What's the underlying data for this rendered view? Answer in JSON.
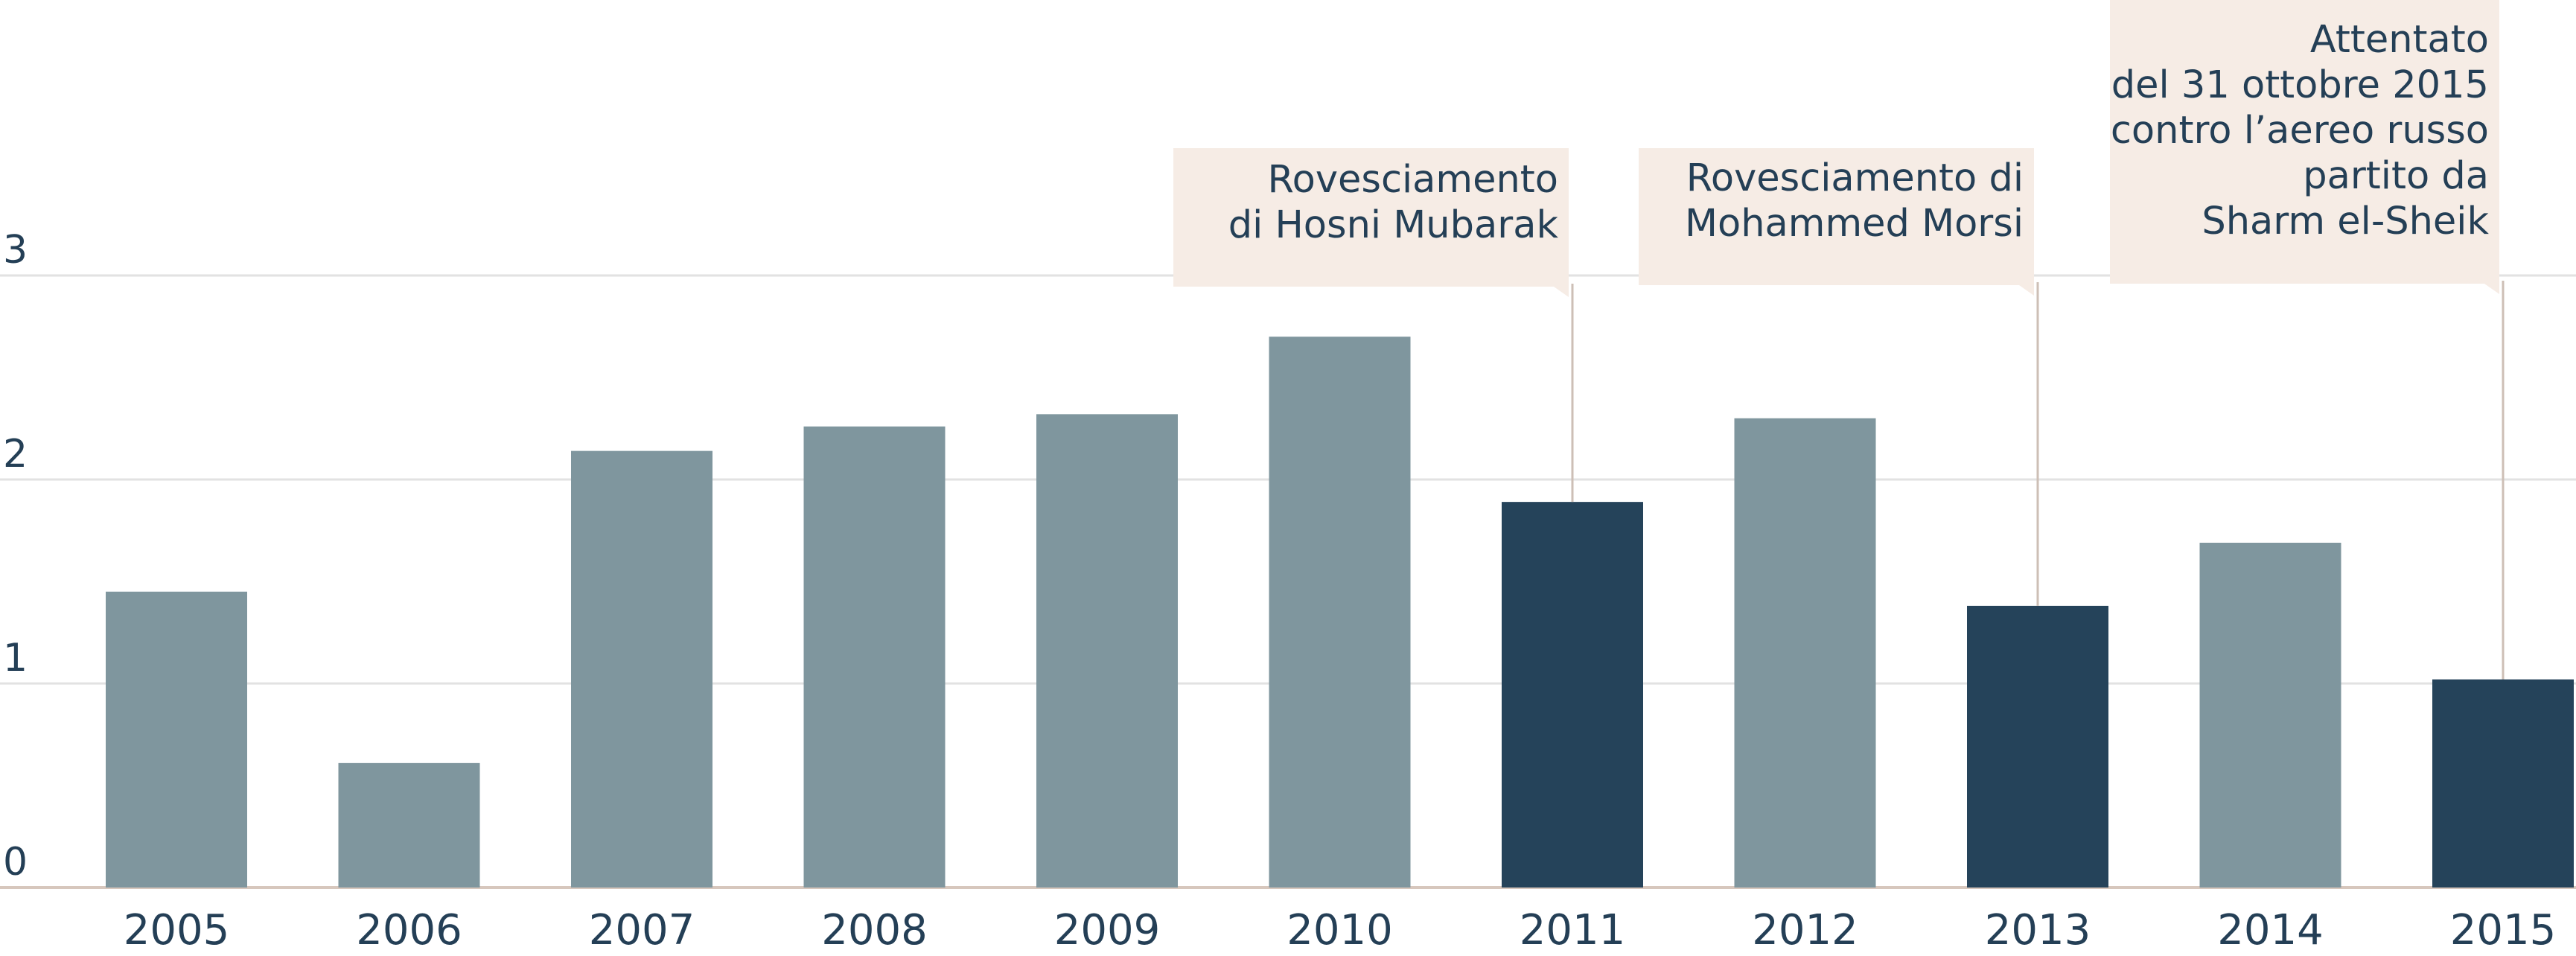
{
  "chart_data": {
    "type": "bar",
    "categories": [
      "2005",
      "2006",
      "2007",
      "2008",
      "2009",
      "2010",
      "2011",
      "2012",
      "2013",
      "2014",
      "2015"
    ],
    "values": [
      1.45,
      0.61,
      2.14,
      2.26,
      2.32,
      2.7,
      1.89,
      2.3,
      1.38,
      1.69,
      1.02
    ],
    "highlighted": [
      "2011",
      "2013",
      "2015"
    ],
    "ylim": [
      0,
      3
    ],
    "yticks": [
      0,
      1,
      2,
      3
    ],
    "title": "",
    "xlabel": "",
    "ylabel": "",
    "grid": true,
    "colors": {
      "bar": "#7f969e",
      "highlight": "#25435a",
      "annotation_bg": "#f6ece5",
      "text": "#243f56"
    },
    "annotations": [
      {
        "category": "2011",
        "lines": [
          "Rovesciamento",
          "di Hosni Mubarak"
        ]
      },
      {
        "category": "2013",
        "lines": [
          "Rovesciamento di",
          "Mohammed Morsi"
        ]
      },
      {
        "category": "2015",
        "lines": [
          "Attentato",
          "del 31 ottobre 2015",
          "contro l’aereo russo",
          "partito da",
          "Sharm el-Sheik"
        ]
      }
    ]
  }
}
